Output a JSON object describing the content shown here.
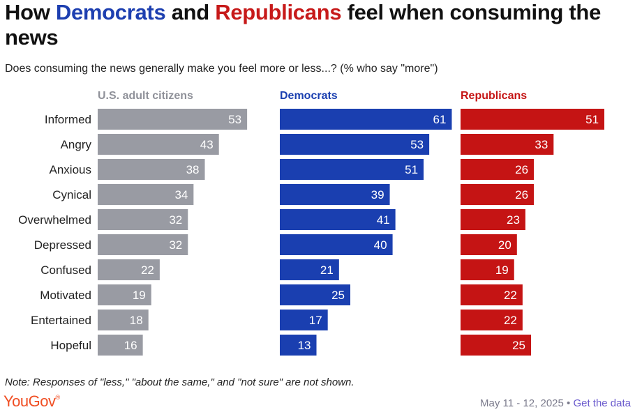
{
  "title": {
    "part1": "How ",
    "democrats": "Democrats",
    "part2": " and ",
    "republicans": "Republicans",
    "part3": " feel when consuming the news"
  },
  "subtitle": "Does consuming the news generally make you feel more or less...? (% who say \"more\")",
  "note": "Note: Responses of \"less,\" \"about the same,\" and \"not sure\" are not shown.",
  "logo": {
    "text": "YouGov",
    "mark": "®"
  },
  "footer": {
    "date": "May 11 - 12, 2025",
    "separator": " • ",
    "link": "Get the data"
  },
  "colors": {
    "adults": "#999ba3",
    "democrats": "#1a3fb0",
    "republicans": "#c51414"
  },
  "chart_data": {
    "type": "bar",
    "orientation": "horizontal",
    "categories": [
      "Informed",
      "Angry",
      "Anxious",
      "Cynical",
      "Overwhelmed",
      "Depressed",
      "Confused",
      "Motivated",
      "Entertained",
      "Hopeful"
    ],
    "series": [
      {
        "name": "U.S. adult citizens",
        "values": [
          53,
          43,
          38,
          34,
          32,
          32,
          22,
          19,
          18,
          16
        ]
      },
      {
        "name": "Democrats",
        "values": [
          61,
          53,
          51,
          39,
          41,
          40,
          21,
          25,
          17,
          13
        ]
      },
      {
        "name": "Republicans",
        "values": [
          51,
          33,
          26,
          26,
          23,
          20,
          19,
          22,
          22,
          25
        ]
      }
    ],
    "unit": "%"
  }
}
